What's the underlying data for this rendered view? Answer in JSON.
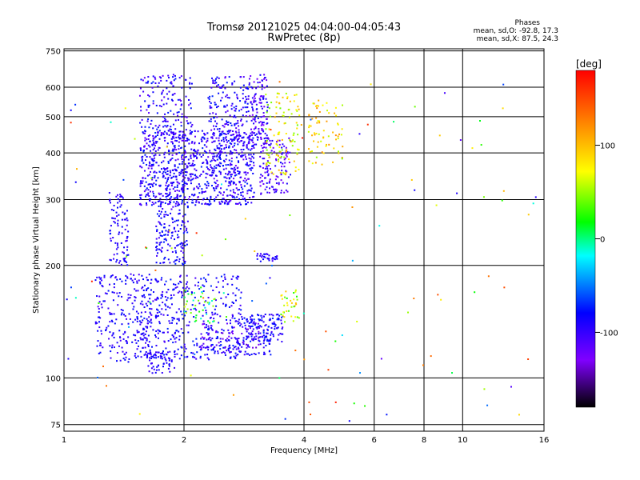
{
  "chart_data": {
    "type": "scatter",
    "title": "Tromsø 20121025 04:04:00-04:05:43",
    "subtitle": "RwPretec (8p)",
    "xlabel": "Frequency [MHz]",
    "ylabel": "Stationary phase Virtual Height [km]",
    "x_scale": "log",
    "y_scale": "log",
    "xlim": [
      1,
      16
    ],
    "ylim": [
      72,
      760
    ],
    "x_ticks": [
      1,
      2,
      4,
      6,
      8,
      10,
      16
    ],
    "x_tick_labels": [
      "1",
      "2",
      "4",
      "6",
      "8",
      "10",
      "16"
    ],
    "y_ticks": [
      75,
      100,
      200,
      300,
      400,
      500,
      600,
      750
    ],
    "y_tick_labels": [
      "75",
      "100",
      "200",
      "300",
      "400",
      "500",
      "600",
      "750"
    ],
    "grid": true,
    "stats": {
      "heading": "Phases",
      "line_O": "mean, sd,O: -92.8, 17.3",
      "line_X": "mean, sd,X: 87.5, 24.3"
    },
    "colorbar": {
      "unit": "[deg]",
      "range": [
        -180,
        180
      ],
      "ticks": [
        100,
        0,
        -100
      ],
      "tick_labels": [
        "100",
        "0",
        "-100"
      ],
      "colors": [
        "#000000",
        "#8000ff",
        "#0000ff",
        "#00ffff",
        "#00ff00",
        "#ffff00",
        "#ff8000",
        "#ff0000"
      ]
    },
    "series": [
      {
        "clusters": [
          {
            "x": [
              1.55,
              3.0
            ],
            "y": [
              290,
              460
            ],
            "n": 900,
            "phase": [
              -120,
              -70
            ]
          },
          {
            "x": [
              1.55,
              2.1
            ],
            "y": [
              440,
              650
            ],
            "n": 160,
            "phase": [
              -120,
              -70
            ]
          },
          {
            "x": [
              2.3,
              2.9
            ],
            "y": [
              430,
              640
            ],
            "n": 160,
            "phase": [
              -120,
              -70
            ]
          },
          {
            "x": [
              2.9,
              3.25
            ],
            "y": [
              420,
              650
            ],
            "n": 140,
            "phase": [
              -130,
              -80
            ]
          },
          {
            "x": [
              3.1,
              3.7
            ],
            "y": [
              310,
              440
            ],
            "n": 130,
            "phase": [
              -130,
              -85
            ]
          },
          {
            "x": [
              1.3,
              1.45
            ],
            "y": [
              200,
              320
            ],
            "n": 90,
            "phase": [
              -110,
              -80
            ]
          },
          {
            "x": [
              1.7,
              2.05
            ],
            "y": [
              200,
              300
            ],
            "n": 160,
            "phase": [
              -110,
              -70
            ]
          },
          {
            "x": [
              1.8,
              2.1
            ],
            "y": [
              300,
              390
            ],
            "n": 40,
            "phase": [
              -110,
              -80
            ]
          },
          {
            "x": [
              1.2,
              1.65
            ],
            "y": [
              110,
              190
            ],
            "n": 200,
            "phase": [
              -110,
              -75
            ]
          },
          {
            "x": [
              1.5,
              2.8
            ],
            "y": [
              112,
              190
            ],
            "n": 420,
            "phase": [
              -110,
              -70
            ]
          },
          {
            "x": [
              1.6,
              1.9
            ],
            "y": [
              103,
              118
            ],
            "n": 60,
            "phase": [
              -110,
              -80
            ]
          },
          {
            "x": [
              2.8,
              3.55
            ],
            "y": [
              125,
              148
            ],
            "n": 130,
            "phase": [
              -110,
              -70
            ]
          },
          {
            "x": [
              2.3,
              3.3
            ],
            "y": [
              115,
              130
            ],
            "n": 90,
            "phase": [
              -110,
              -70
            ]
          },
          {
            "x": [
              3.05,
              3.45
            ],
            "y": [
              205,
              215
            ],
            "n": 30,
            "phase": [
              -110,
              -80
            ]
          },
          {
            "x": [
              2.2,
              3.1
            ],
            "y": [
              120,
              140
            ],
            "n": 60,
            "phase": [
              -140,
              -100
            ]
          },
          {
            "x": [
              3.2,
              3.9
            ],
            "y": [
              350,
              580
            ],
            "n": 110,
            "phase": [
              40,
              110
            ]
          },
          {
            "x": [
              4.1,
              5.0
            ],
            "y": [
              370,
              560
            ],
            "n": 70,
            "phase": [
              50,
              120
            ]
          },
          {
            "x": [
              3.5,
              3.9
            ],
            "y": [
              140,
              172
            ],
            "n": 35,
            "phase": [
              20,
              100
            ]
          },
          {
            "x": [
              2.0,
              2.4
            ],
            "y": [
              140,
              175
            ],
            "n": 40,
            "phase": [
              -30,
              60
            ]
          },
          {
            "x": [
              1.0,
              16.0
            ],
            "y": [
              76,
              640
            ],
            "n": 120,
            "phase": [
              -120,
              170
            ]
          }
        ]
      }
    ]
  }
}
